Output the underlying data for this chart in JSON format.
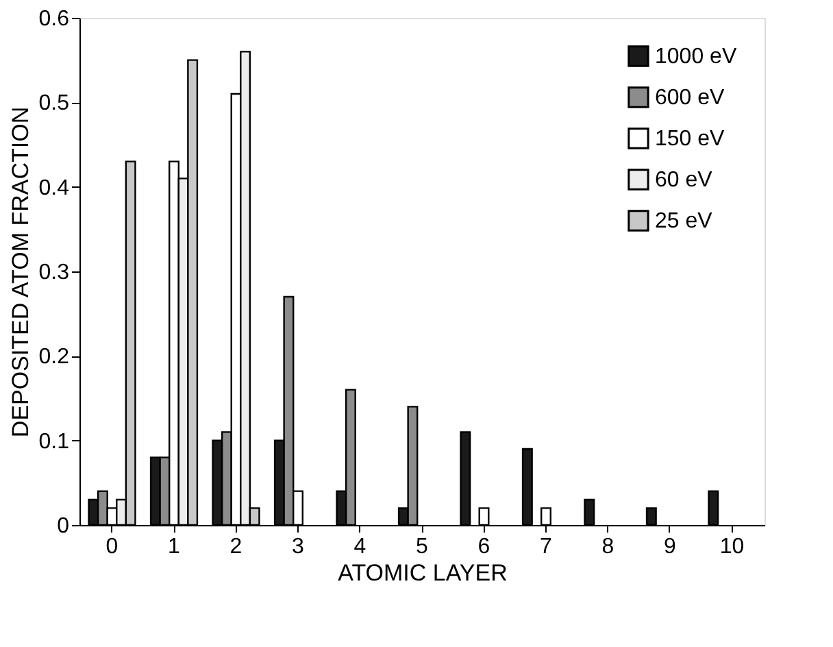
{
  "chart_data": {
    "type": "bar",
    "xlabel": "ATOMIC LAYER",
    "ylabel": "DEPOSITED ATOM FRACTION",
    "categories": [
      "0",
      "1",
      "2",
      "3",
      "4",
      "5",
      "6",
      "7",
      "8",
      "9",
      "10"
    ],
    "series": [
      {
        "name": "1000 eV",
        "color": "#1a1a1a",
        "values": [
          0.03,
          0.08,
          0.1,
          0.1,
          0.04,
          0.02,
          0.11,
          0.09,
          0.03,
          0.02,
          0.04
        ]
      },
      {
        "name": "600 eV",
        "color": "#8c8c8c",
        "values": [
          0.04,
          0.08,
          0.11,
          0.27,
          0.16,
          0.14,
          null,
          null,
          null,
          null,
          null
        ]
      },
      {
        "name": "150 eV",
        "color": "#ffffff",
        "values": [
          0.02,
          0.43,
          0.51,
          0.04,
          null,
          null,
          0.02,
          0.02,
          null,
          null,
          null
        ]
      },
      {
        "name": "60 eV",
        "color": "#ececec",
        "values": [
          0.03,
          0.41,
          0.56,
          null,
          null,
          null,
          null,
          null,
          null,
          null,
          null
        ]
      },
      {
        "name": "25 eV",
        "color": "#c8c8c8",
        "values": [
          0.43,
          0.55,
          0.02,
          null,
          null,
          null,
          null,
          null,
          null,
          null,
          null
        ]
      }
    ],
    "ylim": [
      0,
      0.6
    ],
    "yticks": [
      0,
      0.1,
      0.2,
      0.3,
      0.4,
      0.5,
      0.6
    ],
    "grid": false,
    "legend": "top right"
  }
}
